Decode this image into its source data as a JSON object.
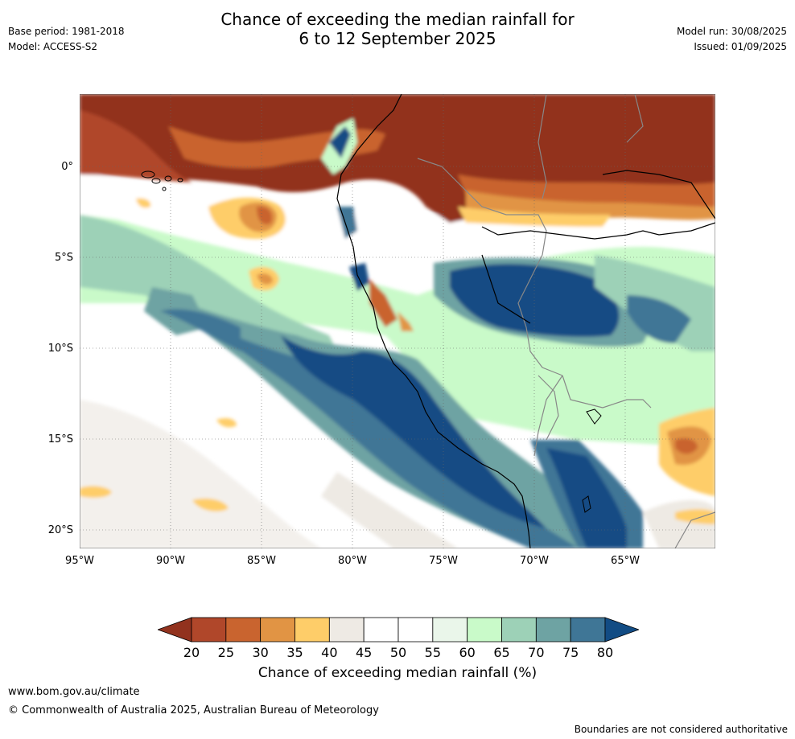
{
  "title_line1": "Chance of exceeding the median rainfall for",
  "title_line2": "6 to 12 September 2025",
  "base_period": "Base period: 1981-2018",
  "model": "Model: ACCESS-S2",
  "model_run": "Model run: 30/08/2025",
  "issued": "Issued: 01/09/2025",
  "lat_labels": [
    "0°",
    "5°S",
    "10°S",
    "15°S",
    "20°S"
  ],
  "lon_labels": [
    "95°W",
    "90°W",
    "85°W",
    "80°W",
    "75°W",
    "70°W",
    "65°W"
  ],
  "colorbar": {
    "ticks": [
      "20",
      "25",
      "30",
      "35",
      "40",
      "45",
      "50",
      "55",
      "60",
      "65",
      "70",
      "75",
      "80"
    ],
    "colors": [
      "#92321e",
      "#b0472a",
      "#c9642f",
      "#e19444",
      "#fecd69",
      "#eeeae4",
      "#ffffff",
      "#ffffff",
      "#eaf6ea",
      "#c9fac9",
      "#9dd1b7",
      "#6ea3a3",
      "#3f7696",
      "#124c84"
    ],
    "title": "Chance of exceeding median rainfall (%)"
  },
  "website": "www.bom.gov.au/climate",
  "copyright": "© Commonwealth of Australia 2025, Australian Bureau of Meteorology",
  "disclaimer": "Boundaries are not considered authoritative"
}
